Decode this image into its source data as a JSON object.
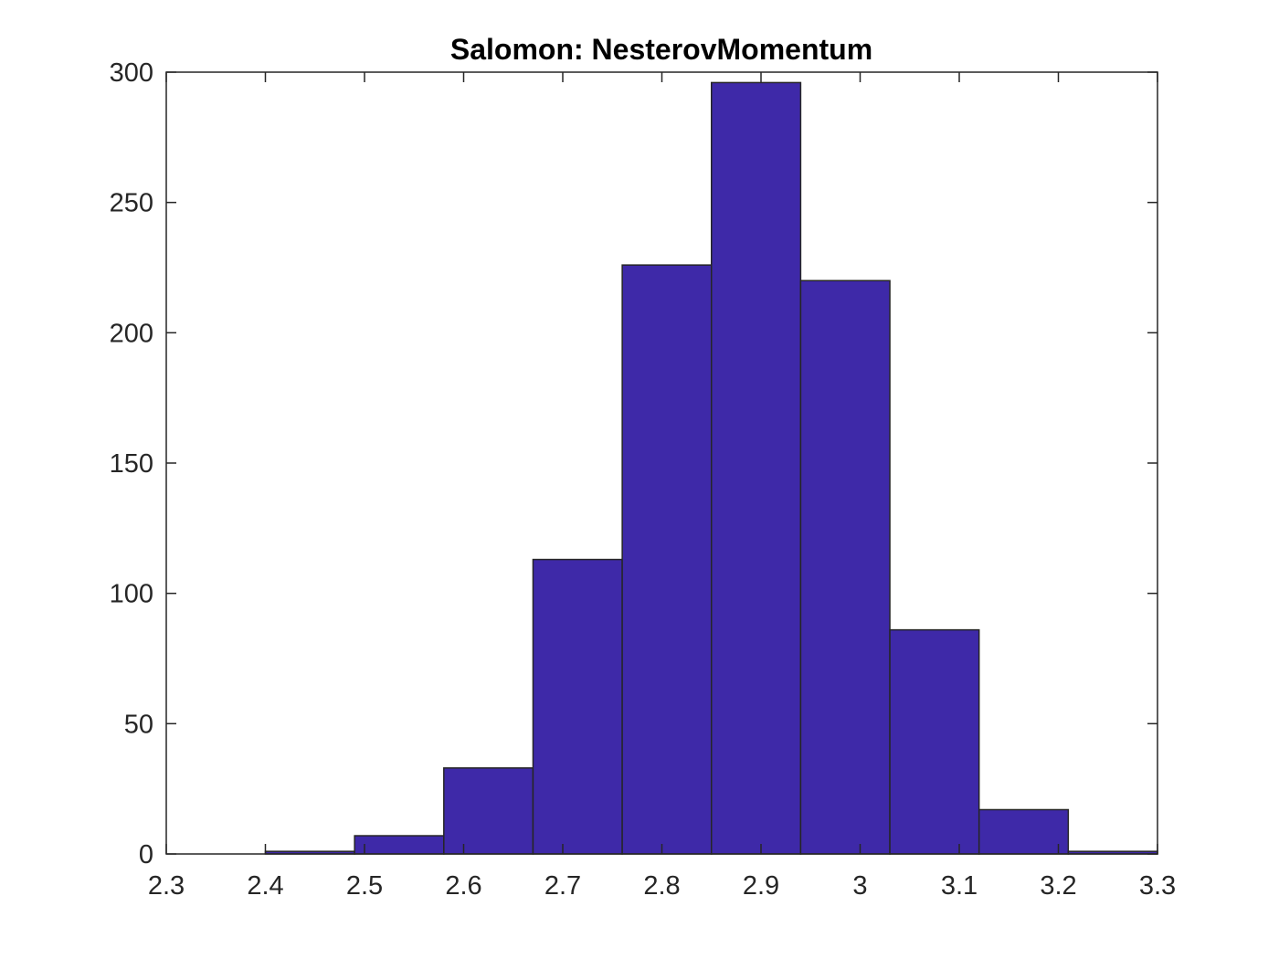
{
  "chart_data": {
    "type": "bar",
    "subtype": "histogram",
    "title": "Salomon: NesterovMomentum",
    "xlabel": "",
    "ylabel": "",
    "xlim": [
      2.3,
      3.3
    ],
    "ylim": [
      0,
      300
    ],
    "x_ticks": [
      "2.3",
      "2.4",
      "2.5",
      "2.6",
      "2.7",
      "2.8",
      "2.9",
      "3",
      "3.1",
      "3.2",
      "3.3"
    ],
    "y_ticks": [
      "0",
      "50",
      "100",
      "150",
      "200",
      "250",
      "300"
    ],
    "bin_edges": [
      2.4,
      2.49,
      2.58,
      2.67,
      2.76,
      2.85,
      2.94,
      3.03,
      3.12,
      3.21,
      3.3
    ],
    "values": [
      1,
      7,
      33,
      113,
      226,
      296,
      220,
      86,
      17,
      1
    ],
    "grid": false,
    "legend": "none",
    "bar_color": "#3E29A8",
    "edge_color": "#262626"
  }
}
